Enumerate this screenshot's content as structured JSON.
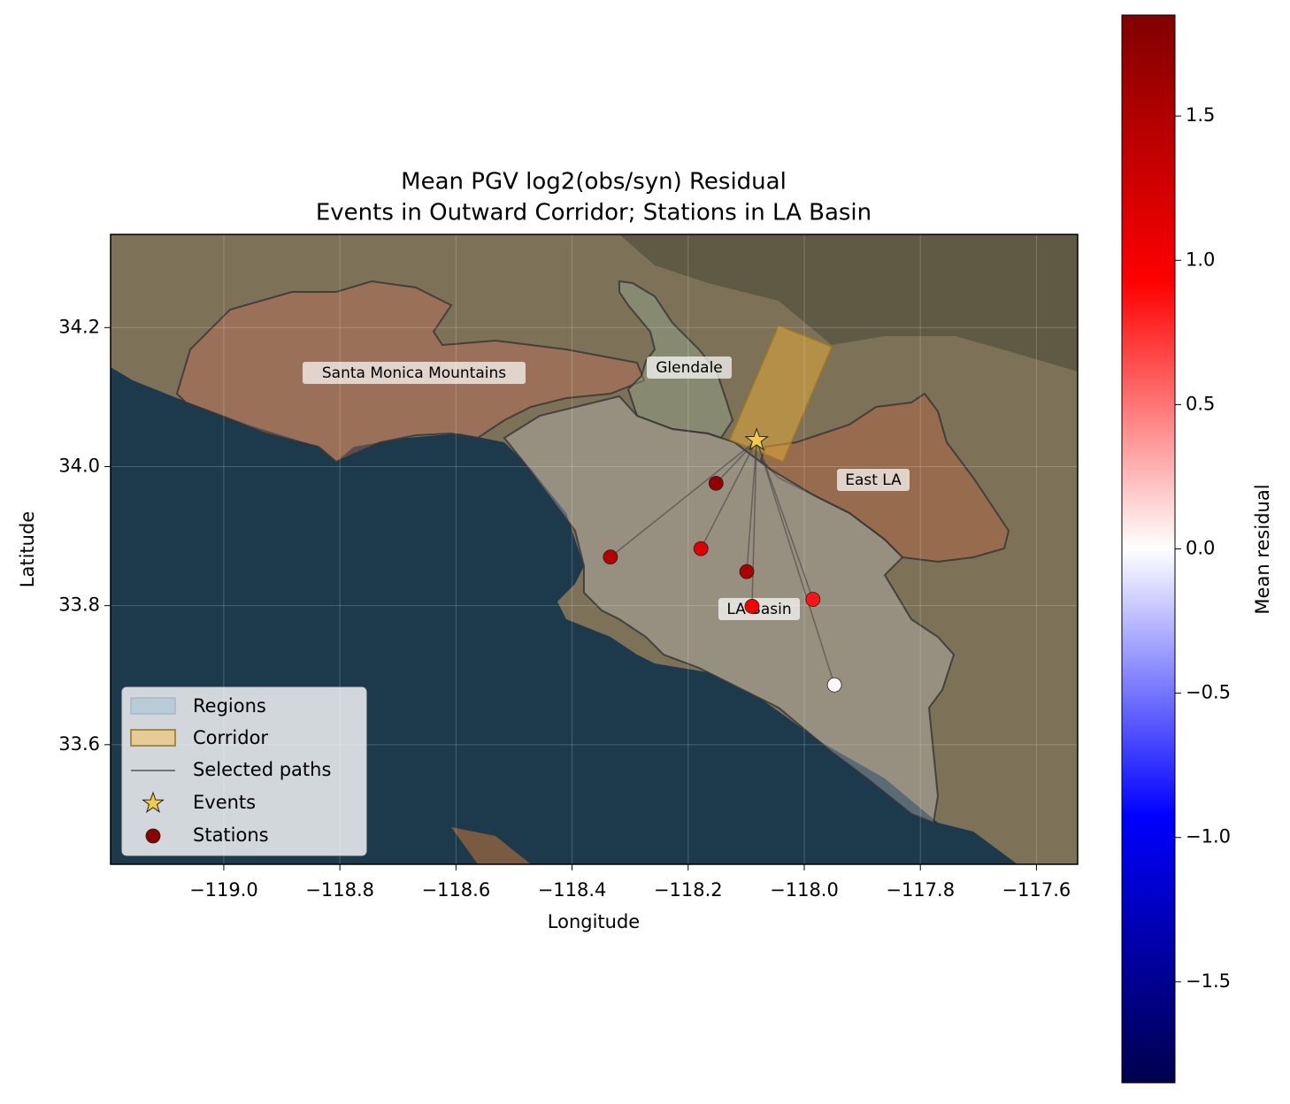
{
  "chart_data": {
    "type": "scatter",
    "title": "Mean PGV log2(obs/syn) Residual",
    "subtitle": "Events in Outward Corridor; Stations in LA Basin",
    "x_label": "Longitude",
    "y_label": "Latitude",
    "xlim": [
      -119.195,
      -117.529
    ],
    "ylim": [
      33.428,
      34.334
    ],
    "xticks": [
      {
        "value": -119.0,
        "label": "−119.0"
      },
      {
        "value": -118.8,
        "label": "−118.8"
      },
      {
        "value": -118.6,
        "label": "−118.6"
      },
      {
        "value": -118.4,
        "label": "−118.4"
      },
      {
        "value": -118.2,
        "label": "−118.2"
      },
      {
        "value": -118.0,
        "label": "−118.0"
      },
      {
        "value": -117.8,
        "label": "−117.8"
      },
      {
        "value": -117.6,
        "label": "−117.6"
      }
    ],
    "yticks": [
      33.6,
      33.8,
      {
        "value": 34.0,
        "label": "34.0"
      },
      34.2
    ],
    "grid": true,
    "legend": "lower left",
    "region_legend": "Regions",
    "corridor_legend": "Corridor",
    "path_legend": "Selected paths",
    "region_labels": [
      "Santa Monica Mountains",
      "Glendale",
      "East LA",
      "LA Basin"
    ],
    "events": {
      "name": "Events",
      "color": "#f2c94c",
      "x": [
        -118.082
      ],
      "y": [
        34.038
      ]
    },
    "stations": {
      "name": "Stations",
      "legend_color": "#8b0000",
      "x": [
        -118.334,
        -118.178,
        -118.152,
        -118.099,
        -118.09,
        -117.985,
        -117.948
      ],
      "y": [
        33.87,
        33.882,
        33.976,
        33.849,
        33.799,
        33.809,
        33.686
      ],
      "values": [
        1.45,
        1.15,
        1.7,
        1.55,
        0.95,
        0.85,
        0.03
      ]
    },
    "colormap": "seismic",
    "colorbar_label": "Mean residual",
    "clim": [
      -1.85,
      1.85
    ],
    "cticks": [
      {
        "value": -1.5,
        "label": "−1.5"
      },
      {
        "value": -1.0,
        "label": "−1.0"
      },
      {
        "value": -0.5,
        "label": "−0.5"
      },
      {
        "value": 0.0,
        "label": "0.0"
      },
      0.5,
      {
        "value": 1.0,
        "label": "1.0"
      },
      1.5
    ]
  }
}
